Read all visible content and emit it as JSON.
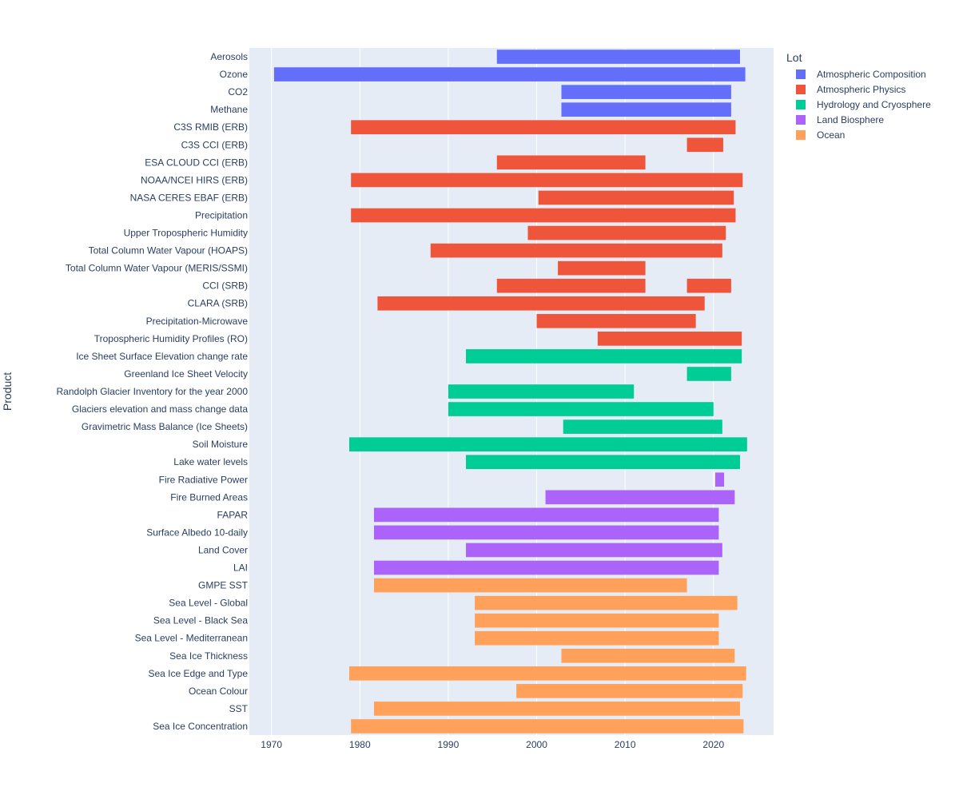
{
  "chart_data": {
    "type": "bar",
    "orientation": "horizontal-timeline",
    "title": "",
    "xlabel": "",
    "ylabel": "Product",
    "xlim": [
      1967.5,
      2026.8
    ],
    "x_ticks": [
      1970,
      1980,
      1990,
      2000,
      2010,
      2020
    ],
    "grid": true,
    "legend_title": "Lot",
    "legend_placement": "top-right",
    "categories": [
      "Aerosols",
      "Ozone",
      "CO2",
      "Methane",
      "C3S RMIB (ERB)",
      "C3S CCI (ERB)",
      "ESA CLOUD CCI (ERB)",
      "NOAA/NCEI HIRS (ERB)",
      "NASA CERES EBAF (ERB)",
      "Precipitation",
      "Upper Tropospheric Humidity",
      "Total Column Water Vapour (HOAPS)",
      "Total Column Water Vapour (MERIS/SSMI)",
      "CCI (SRB)",
      "CLARA (SRB)",
      "Precipitation-Microwave",
      "Tropospheric Humidity Profiles (RO)",
      "Ice Sheet Surface Elevation change rate",
      "Greenland Ice Sheet Velocity",
      "Randolph Glacier Inventory for the year 2000",
      "Glaciers elevation and mass change data",
      "Gravimetric Mass Balance (Ice Sheets)",
      "Soil Moisture",
      "Lake water levels",
      "Fire Radiative Power",
      "Fire Burned Areas",
      "FAPAR",
      "Surface Albedo 10-daily",
      "Land Cover",
      "LAI",
      "GMPE SST",
      "Sea Level - Global",
      "Sea Level - Black Sea",
      "Sea Level - Mediterranean",
      "Sea Ice Thickness",
      "Sea Ice Edge and Type",
      "Ocean Colour",
      "SST",
      "Sea Ice Concentration"
    ],
    "series": [
      {
        "name": "Atmospheric Composition",
        "color": "#636efa",
        "bars": [
          {
            "category": "Aerosols",
            "start": 1995.5,
            "end": 2023.0
          },
          {
            "category": "Ozone",
            "start": 1970.3,
            "end": 2023.6
          },
          {
            "category": "CO2",
            "start": 2002.8,
            "end": 2022.0
          },
          {
            "category": "Methane",
            "start": 2002.8,
            "end": 2022.0
          }
        ]
      },
      {
        "name": "Atmospheric Physics",
        "color": "#ef553b",
        "bars": [
          {
            "category": "C3S RMIB (ERB)",
            "start": 1979.0,
            "end": 2022.5
          },
          {
            "category": "C3S CCI (ERB)",
            "start": 2017.0,
            "end": 2021.1
          },
          {
            "category": "ESA CLOUD CCI (ERB)",
            "start": 1995.5,
            "end": 2012.3
          },
          {
            "category": "NOAA/NCEI HIRS (ERB)",
            "start": 1979.0,
            "end": 2023.3
          },
          {
            "category": "NASA CERES EBAF (ERB)",
            "start": 2000.2,
            "end": 2022.3
          },
          {
            "category": "Precipitation",
            "start": 1979.0,
            "end": 2022.5
          },
          {
            "category": "Upper Tropospheric Humidity",
            "start": 1999.0,
            "end": 2021.4
          },
          {
            "category": "Total Column Water Vapour (HOAPS)",
            "start": 1988.0,
            "end": 2021.0
          },
          {
            "category": "Total Column Water Vapour (MERIS/SSMI)",
            "start": 2002.4,
            "end": 2012.3
          },
          {
            "category": "CCI (SRB)",
            "start": 1995.5,
            "end": 2012.3
          },
          {
            "category": "CCI (SRB)",
            "start": 2017.0,
            "end": 2022.0
          },
          {
            "category": "CLARA (SRB)",
            "start": 1982.0,
            "end": 2019.0
          },
          {
            "category": "Precipitation-Microwave",
            "start": 2000.0,
            "end": 2018.0
          },
          {
            "category": "Tropospheric Humidity Profiles (RO)",
            "start": 2006.9,
            "end": 2023.2
          }
        ]
      },
      {
        "name": "Hydrology and Cryosphere",
        "color": "#00cc96",
        "bars": [
          {
            "category": "Ice Sheet Surface Elevation change rate",
            "start": 1992.0,
            "end": 2023.2
          },
          {
            "category": "Greenland Ice Sheet Velocity",
            "start": 2017.0,
            "end": 2022.0
          },
          {
            "category": "Randolph Glacier Inventory for the year 2000",
            "start": 1990.0,
            "end": 2011.0
          },
          {
            "category": "Glaciers elevation and mass change data",
            "start": 1990.0,
            "end": 2020.0
          },
          {
            "category": "Gravimetric Mass Balance (Ice Sheets)",
            "start": 2003.0,
            "end": 2021.0
          },
          {
            "category": "Soil Moisture",
            "start": 1978.8,
            "end": 2023.8
          },
          {
            "category": "Lake water levels",
            "start": 1992.0,
            "end": 2023.0
          }
        ]
      },
      {
        "name": "Land Biosphere",
        "color": "#ab63fa",
        "bars": [
          {
            "category": "Fire Radiative Power",
            "start": 2020.2,
            "end": 2021.2
          },
          {
            "category": "Fire Burned Areas",
            "start": 2001.0,
            "end": 2022.4
          },
          {
            "category": "FAPAR",
            "start": 1981.6,
            "end": 2020.6
          },
          {
            "category": "Surface Albedo 10-daily",
            "start": 1981.6,
            "end": 2020.6
          },
          {
            "category": "Land Cover",
            "start": 1992.0,
            "end": 2021.0
          },
          {
            "category": "LAI",
            "start": 1981.6,
            "end": 2020.6
          }
        ]
      },
      {
        "name": "Ocean",
        "color": "#ffa15a",
        "bars": [
          {
            "category": "GMPE SST",
            "start": 1981.6,
            "end": 2017.0
          },
          {
            "category": "Sea Level - Global",
            "start": 1993.0,
            "end": 2022.7
          },
          {
            "category": "Sea Level - Black Sea",
            "start": 1993.0,
            "end": 2020.6
          },
          {
            "category": "Sea Level - Mediterranean",
            "start": 1993.0,
            "end": 2020.6
          },
          {
            "category": "Sea Ice Thickness",
            "start": 2002.8,
            "end": 2022.4
          },
          {
            "category": "Sea Ice Edge and Type",
            "start": 1978.8,
            "end": 2023.7
          },
          {
            "category": "Ocean Colour",
            "start": 1997.7,
            "end": 2023.3
          },
          {
            "category": "SST",
            "start": 1981.6,
            "end": 2023.0
          },
          {
            "category": "Sea Ice Concentration",
            "start": 1979.0,
            "end": 2023.4
          }
        ]
      }
    ]
  }
}
